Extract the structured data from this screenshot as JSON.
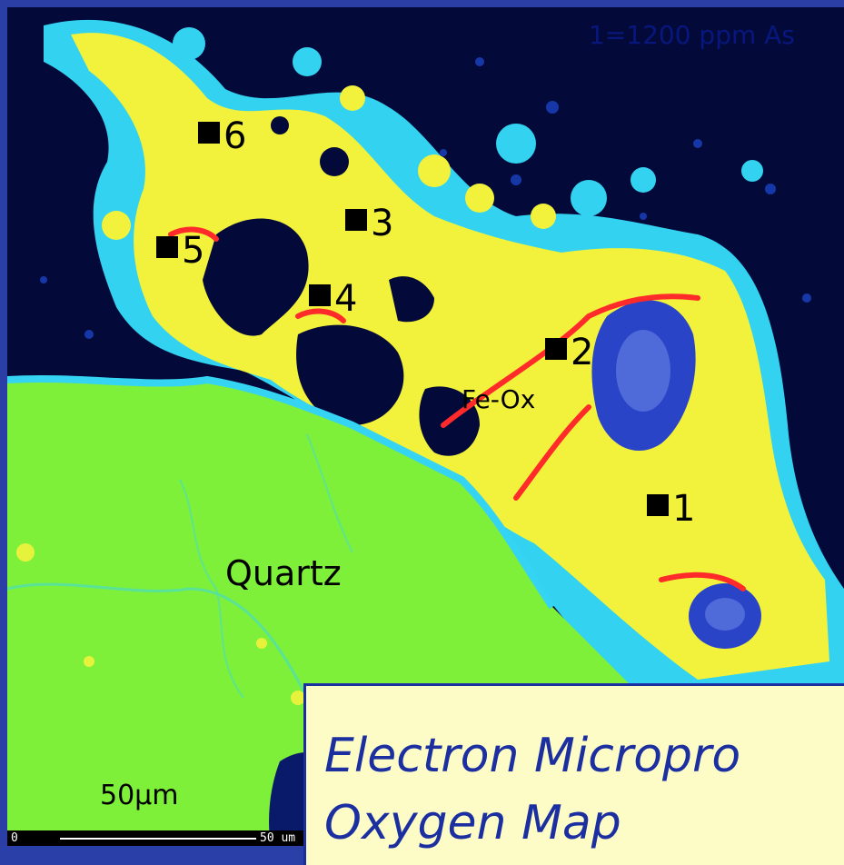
{
  "image": {
    "subject": "electron microprobe oxygen element map",
    "colors": {
      "background_dark": "#030a3a",
      "quartz_green": "#7ff03a",
      "feox_yellow": "#f5f53a",
      "halo_cyan": "#32d2f0",
      "red_rim": "#ff2a2a",
      "frame_blue": "#2b3ea6",
      "caption_bg": "#fefcc6",
      "caption_text": "#1c2fa0"
    }
  },
  "annotation": {
    "note": "1=1200 ppm As"
  },
  "points": [
    {
      "label": "1"
    },
    {
      "label": "2"
    },
    {
      "label": "3"
    },
    {
      "label": "4"
    },
    {
      "label": "5"
    },
    {
      "label": "6"
    }
  ],
  "phases": {
    "quartz": "Quartz",
    "feox": "Fe-Ox"
  },
  "scale": {
    "label": "50μm",
    "tick_start": "0",
    "tick_end": "50 um"
  },
  "caption": {
    "line1": "Electron Micropro",
    "line2": "Oxygen Map"
  }
}
